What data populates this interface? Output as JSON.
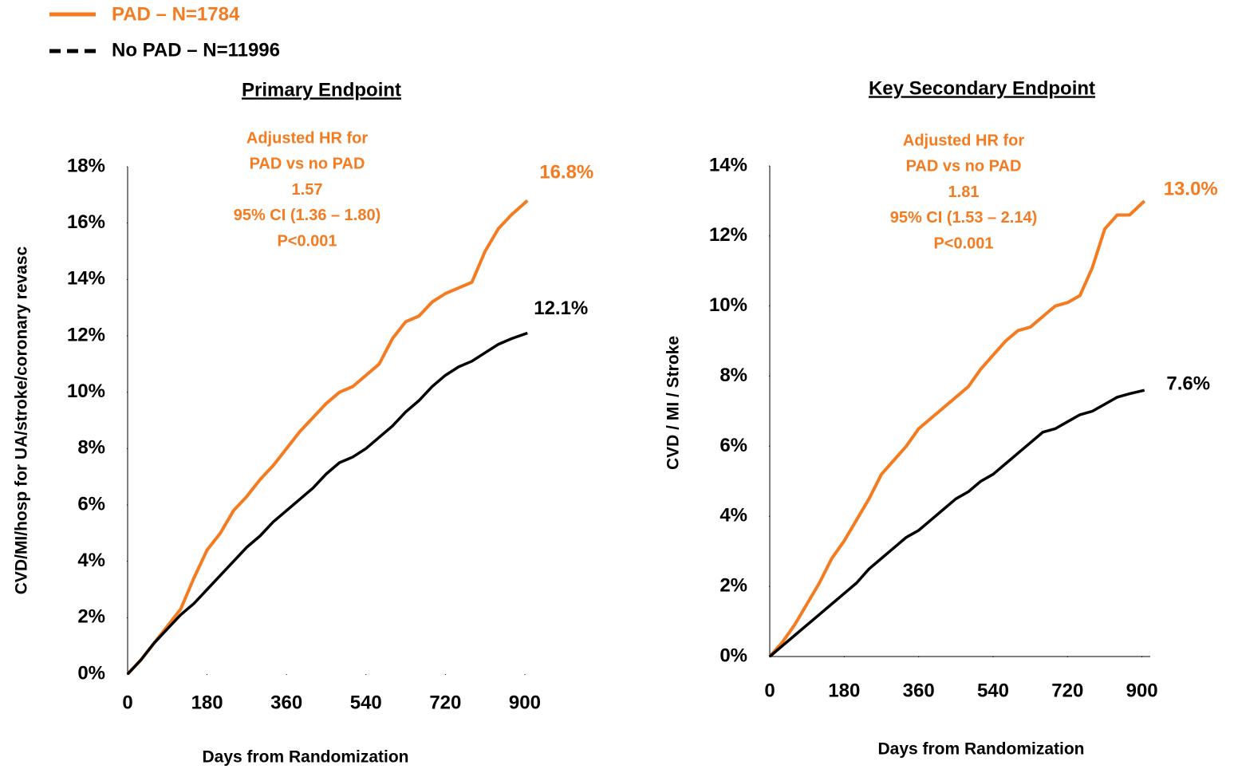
{
  "chart_data": [
    {
      "type": "line",
      "title": "Primary Endpoint",
      "y_label": "CVD/MI/hosp for UA/stroke/coronary revasc",
      "x_label": "Days from Randomization",
      "annotation": [
        "Adjusted HR for",
        "PAD vs no PAD",
        "1.57",
        "95% CI (1.36 – 1.80)",
        "P<0.001"
      ],
      "annotation_color": "#f47b20",
      "x": [
        0,
        30,
        60,
        90,
        120,
        150,
        180,
        210,
        240,
        270,
        300,
        330,
        360,
        390,
        420,
        450,
        480,
        510,
        540,
        570,
        600,
        630,
        660,
        690,
        720,
        750,
        780,
        810,
        840,
        870,
        906
      ],
      "xlim": [
        0,
        920
      ],
      "xticks": [
        0,
        180,
        360,
        540,
        720,
        900
      ],
      "ylim": [
        0,
        18
      ],
      "yticks": [
        {
          "value": 0,
          "label": "0%"
        },
        {
          "value": 2,
          "label": "2%"
        },
        {
          "value": 4,
          "label": "4%"
        },
        {
          "value": 6,
          "label": "6%"
        },
        {
          "value": 8,
          "label": "8%"
        },
        {
          "value": 10,
          "label": "10%"
        },
        {
          "value": 12,
          "label": "12%"
        },
        {
          "value": 14,
          "label": "14%"
        },
        {
          "value": 16,
          "label": "16%"
        },
        {
          "value": 18,
          "label": "18%"
        }
      ],
      "series": [
        {
          "name": "PAD – N=1784",
          "color": "#f47b20",
          "values": [
            0,
            0.5,
            1.1,
            1.7,
            2.3,
            3.4,
            4.4,
            5.0,
            5.8,
            6.3,
            6.9,
            7.4,
            8.0,
            8.6,
            9.1,
            9.6,
            10.0,
            10.2,
            10.6,
            11.0,
            11.9,
            12.5,
            12.7,
            13.2,
            13.5,
            13.7,
            13.9,
            15.0,
            15.8,
            16.3,
            16.8
          ],
          "value_labels": [
            null,
            null,
            null,
            null,
            null,
            null,
            null,
            null,
            null,
            null,
            null,
            null,
            null,
            null,
            null,
            null,
            null,
            null,
            null,
            null,
            null,
            null,
            null,
            null,
            null,
            null,
            null,
            null,
            null,
            null,
            "16.8%"
          ]
        },
        {
          "name": "No PAD – N=11996",
          "color": "#000000",
          "values": [
            0,
            0.5,
            1.1,
            1.6,
            2.1,
            2.5,
            3.0,
            3.5,
            4.0,
            4.5,
            4.9,
            5.4,
            5.8,
            6.2,
            6.6,
            7.1,
            7.5,
            7.7,
            8.0,
            8.4,
            8.8,
            9.3,
            9.7,
            10.2,
            10.6,
            10.9,
            11.1,
            11.4,
            11.7,
            11.9,
            12.1
          ],
          "value_labels": [
            null,
            null,
            null,
            null,
            null,
            null,
            null,
            null,
            null,
            null,
            null,
            null,
            null,
            null,
            null,
            null,
            null,
            null,
            null,
            null,
            null,
            null,
            null,
            null,
            null,
            null,
            null,
            null,
            null,
            null,
            "12.1%"
          ]
        }
      ]
    },
    {
      "type": "line",
      "title": "Key Secondary Endpoint",
      "y_label": "CVD / MI / Stroke",
      "x_label": "Days from Randomization",
      "annotation": [
        "Adjusted HR for",
        "PAD vs no PAD",
        "1.81",
        "95% CI (1.53 – 2.14)",
        "P<0.001"
      ],
      "annotation_color": "#f47b20",
      "x": [
        0,
        30,
        60,
        90,
        120,
        150,
        180,
        210,
        240,
        270,
        300,
        330,
        360,
        390,
        420,
        450,
        480,
        510,
        540,
        570,
        600,
        630,
        660,
        690,
        720,
        750,
        780,
        810,
        840,
        870,
        906
      ],
      "xlim": [
        0,
        920
      ],
      "xticks": [
        0,
        180,
        360,
        540,
        720,
        900
      ],
      "ylim": [
        0,
        14
      ],
      "yticks": [
        {
          "value": 0,
          "label": "0%"
        },
        {
          "value": 2,
          "label": "2%"
        },
        {
          "value": 4,
          "label": "4%"
        },
        {
          "value": 6,
          "label": "6%"
        },
        {
          "value": 8,
          "label": "8%"
        },
        {
          "value": 10,
          "label": "10%"
        },
        {
          "value": 12,
          "label": "12%"
        },
        {
          "value": 14,
          "label": "14%"
        }
      ],
      "series": [
        {
          "color": "#f47b20",
          "values": [
            0,
            0.4,
            0.9,
            1.5,
            2.1,
            2.8,
            3.3,
            3.9,
            4.5,
            5.2,
            5.6,
            6.0,
            6.5,
            6.8,
            7.1,
            7.4,
            7.7,
            8.2,
            8.6,
            9.0,
            9.3,
            9.4,
            9.7,
            10.0,
            10.1,
            10.3,
            11.1,
            12.2,
            12.6,
            12.6,
            13.0
          ],
          "value_labels": [
            null,
            null,
            null,
            null,
            null,
            null,
            null,
            null,
            null,
            null,
            null,
            null,
            null,
            null,
            null,
            null,
            null,
            null,
            null,
            null,
            null,
            null,
            null,
            null,
            null,
            null,
            null,
            null,
            null,
            null,
            "13.0%"
          ]
        },
        {
          "color": "#000000",
          "values": [
            0,
            0.3,
            0.6,
            0.9,
            1.2,
            1.5,
            1.8,
            2.1,
            2.5,
            2.8,
            3.1,
            3.4,
            3.6,
            3.9,
            4.2,
            4.5,
            4.7,
            5.0,
            5.2,
            5.5,
            5.8,
            6.1,
            6.4,
            6.5,
            6.7,
            6.9,
            7.0,
            7.2,
            7.4,
            7.5,
            7.6
          ],
          "value_labels": [
            null,
            null,
            null,
            null,
            null,
            null,
            null,
            null,
            null,
            null,
            null,
            null,
            null,
            null,
            null,
            null,
            null,
            null,
            null,
            null,
            null,
            null,
            null,
            null,
            null,
            null,
            null,
            null,
            null,
            null,
            "7.6%"
          ]
        }
      ]
    }
  ]
}
